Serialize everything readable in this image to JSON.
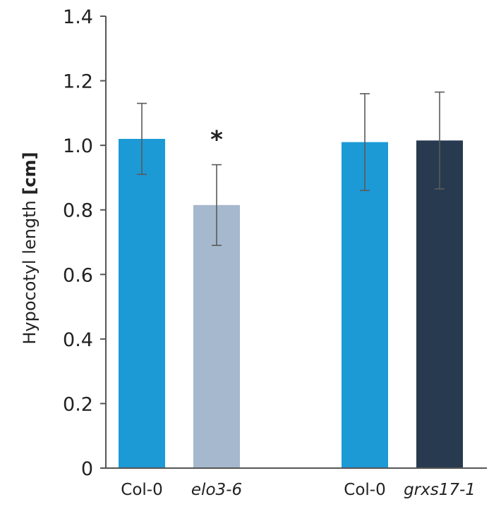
{
  "chart_data": {
    "type": "bar",
    "ylabel_parts": [
      "Hypocotyl length ",
      "[cm]"
    ],
    "ylim": [
      0,
      1.4
    ],
    "yticks": [
      {
        "value": 0,
        "label": "0"
      },
      {
        "value": 0.2,
        "label": "0.2"
      },
      {
        "value": 0.4,
        "label": "0.4"
      },
      {
        "value": 0.6,
        "label": "0.6"
      },
      {
        "value": 0.8,
        "label": "0.8"
      },
      {
        "value": 1.0,
        "label": "1.0"
      },
      {
        "value": 1.2,
        "label": "1.2"
      },
      {
        "value": 1.4,
        "label": "1.4"
      }
    ],
    "grid": false,
    "legend": false,
    "bars": [
      {
        "category": "Col-0",
        "italic": false,
        "value": 1.02,
        "error": 0.11,
        "color": "#1c9ad6",
        "annotation": ""
      },
      {
        "category": "elo3-6",
        "italic": true,
        "value": 0.815,
        "error": 0.125,
        "color": "#a6b8cd",
        "annotation": "*"
      },
      {
        "category": "Col-0",
        "italic": false,
        "value": 1.01,
        "error": 0.15,
        "color": "#1c9ad6",
        "annotation": ""
      },
      {
        "category": "grxs17-1",
        "italic": true,
        "value": 1.015,
        "error": 0.15,
        "color": "#283a4f",
        "annotation": ""
      }
    ]
  }
}
